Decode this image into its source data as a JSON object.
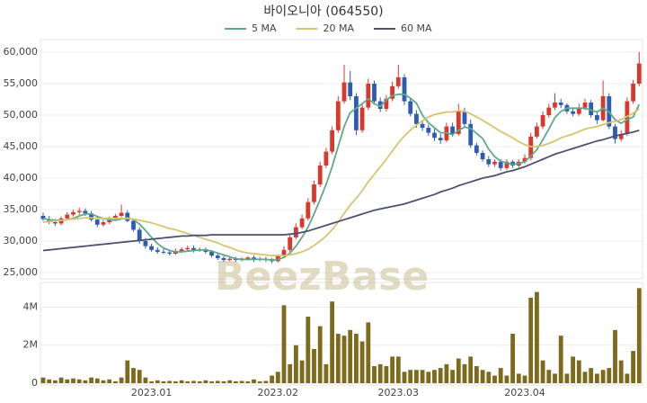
{
  "chart_data": [
    {
      "type": "candlestick",
      "title": "바이오니아 (064550)",
      "watermark": "BeezBase",
      "up_color": "#d9382c",
      "down_color": "#2c5db3",
      "grid": true,
      "ylim": [
        24000,
        62000
      ],
      "yticks": [
        {
          "value": 25000,
          "label": "25,000"
        },
        {
          "value": 30000,
          "label": "30,000"
        },
        {
          "value": 35000,
          "label": "35,000"
        },
        {
          "value": 40000,
          "label": "40,000"
        },
        {
          "value": 45000,
          "label": "45,000"
        },
        {
          "value": 50000,
          "label": "50,000"
        },
        {
          "value": 55000,
          "label": "55,000"
        },
        {
          "value": 60000,
          "label": "60,000"
        }
      ],
      "open": [
        34000,
        33500,
        33000,
        32800,
        33600,
        34200,
        34600,
        34800,
        34400,
        33400,
        32600,
        33000,
        33600,
        34000,
        34500,
        33200,
        31800,
        30000,
        29200,
        28600,
        28300,
        28200,
        28000,
        28400,
        28700,
        28900,
        28500,
        28700,
        28300,
        27700,
        27300,
        27000,
        27200,
        27000,
        27100,
        27400,
        27000,
        27200,
        27000,
        26800,
        27600,
        28600,
        30600,
        32200,
        33600,
        36200,
        39000,
        42000,
        44200,
        47600,
        52200,
        55200,
        53000,
        47600,
        51200,
        55000,
        52200,
        51000,
        52600,
        54600,
        56000,
        52200,
        50200,
        48600,
        48000,
        47200,
        46400,
        46000,
        48200,
        47000,
        50600,
        48600,
        45200,
        44000,
        43000,
        42200,
        42600,
        41600,
        42600,
        42000,
        42600,
        43200,
        46600,
        48200,
        50000,
        51200,
        52000,
        51600,
        50600,
        50200,
        51200,
        52000,
        50000,
        49200,
        53000,
        48200,
        46200,
        47000,
        52200,
        55000
      ],
      "high": [
        34500,
        34000,
        33500,
        33900,
        34600,
        35000,
        35300,
        35200,
        34800,
        33800,
        33400,
        33900,
        34300,
        35800,
        34900,
        33500,
        32200,
        30500,
        29600,
        29000,
        28800,
        28600,
        28800,
        29000,
        29300,
        29300,
        29000,
        29000,
        28600,
        28000,
        27600,
        27600,
        27500,
        27400,
        27600,
        27700,
        27500,
        27500,
        27300,
        27900,
        29200,
        31200,
        32800,
        34200,
        36800,
        39600,
        42600,
        44800,
        48200,
        53000,
        58000,
        57000,
        53500,
        51800,
        55800,
        55500,
        52800,
        53200,
        55300,
        58000,
        56500,
        52800,
        50800,
        49200,
        48500,
        47800,
        47000,
        48800,
        48800,
        51800,
        51200,
        49300,
        45600,
        44400,
        43500,
        43000,
        43000,
        43000,
        42900,
        43000,
        43800,
        47200,
        48800,
        50600,
        51800,
        53500,
        52600,
        51900,
        51000,
        51800,
        52600,
        52400,
        50400,
        55500,
        53500,
        48600,
        47600,
        52800,
        55600,
        60000
      ],
      "low": [
        33200,
        32700,
        32400,
        32500,
        33300,
        33900,
        34200,
        34000,
        33100,
        32200,
        32300,
        32700,
        33300,
        33800,
        33000,
        31500,
        29600,
        28800,
        28300,
        28000,
        27900,
        27700,
        27800,
        28100,
        28400,
        28200,
        28300,
        28000,
        27400,
        27000,
        26700,
        26800,
        26700,
        26800,
        26900,
        26700,
        26800,
        26700,
        26500,
        26600,
        27400,
        28300,
        30300,
        31900,
        33300,
        35800,
        38600,
        41600,
        43800,
        47200,
        51800,
        52400,
        46800,
        47200,
        50800,
        51800,
        50500,
        50600,
        52200,
        54200,
        51600,
        49800,
        48000,
        47500,
        46700,
        45900,
        45400,
        45700,
        46600,
        46700,
        48000,
        44800,
        43600,
        42600,
        41800,
        41800,
        41200,
        41300,
        41600,
        41700,
        42300,
        42800,
        46300,
        47800,
        49600,
        50800,
        51100,
        50200,
        49800,
        49900,
        50800,
        49600,
        48600,
        49000,
        47800,
        45500,
        45800,
        46700,
        51800,
        54600
      ],
      "close": [
        33500,
        33000,
        32800,
        33600,
        34200,
        34600,
        34800,
        34400,
        33400,
        32600,
        33000,
        33600,
        34000,
        34500,
        33200,
        31800,
        30000,
        29200,
        28600,
        28300,
        28200,
        28000,
        28400,
        28700,
        28900,
        28500,
        28700,
        28300,
        27700,
        27300,
        27000,
        27200,
        27000,
        27100,
        27400,
        27000,
        27200,
        27000,
        26800,
        27600,
        28600,
        30600,
        32200,
        33600,
        36200,
        39000,
        42000,
        44200,
        47600,
        52200,
        55200,
        53000,
        47600,
        51200,
        55000,
        52200,
        51000,
        52600,
        54600,
        56000,
        52200,
        50200,
        48600,
        48000,
        47200,
        46400,
        46000,
        48200,
        47000,
        50600,
        48600,
        45200,
        44000,
        43000,
        42200,
        42600,
        41600,
        42600,
        42000,
        42600,
        43200,
        46600,
        48200,
        50000,
        51200,
        52000,
        51600,
        50600,
        50200,
        51200,
        52000,
        50000,
        49200,
        53000,
        48200,
        46200,
        47000,
        52200,
        55000,
        58200
      ],
      "series": [
        {
          "name": "5 MA",
          "color": "#5ea98a",
          "values": [
            33600,
            33400,
            33300,
            33300,
            33400,
            33600,
            34000,
            34300,
            34300,
            33900,
            33600,
            33400,
            33300,
            33500,
            33700,
            33400,
            32700,
            31700,
            30600,
            29600,
            28900,
            28500,
            28300,
            28300,
            28400,
            28500,
            28600,
            28600,
            28400,
            28100,
            27800,
            27500,
            27200,
            27100,
            27100,
            27100,
            27100,
            27100,
            27000,
            27100,
            27400,
            28100,
            29200,
            30600,
            32200,
            34300,
            36600,
            39000,
            41800,
            45000,
            48200,
            50400,
            51100,
            51800,
            52600,
            51800,
            51400,
            52400,
            53100,
            53300,
            53300,
            52700,
            51900,
            50000,
            48800,
            48000,
            47200,
            47200,
            46900,
            47600,
            48100,
            47900,
            47100,
            46300,
            44600,
            43400,
            42700,
            42400,
            42200,
            42300,
            42600,
            43500,
            44500,
            46100,
            47800,
            49600,
            50600,
            51100,
            51100,
            51100,
            51100,
            50800,
            50500,
            51100,
            50500,
            49300,
            48700,
            49300,
            49700,
            51700
          ]
        },
        {
          "name": "20 MA",
          "color": "#d8c46c",
          "values": [
            33000,
            33100,
            33200,
            33300,
            33400,
            33500,
            33600,
            33700,
            33700,
            33600,
            33600,
            33600,
            33600,
            33600,
            33600,
            33500,
            33300,
            33100,
            32900,
            32600,
            32300,
            32000,
            31800,
            31500,
            31200,
            30900,
            30600,
            30300,
            30000,
            29700,
            29300,
            29000,
            28600,
            28300,
            28100,
            28000,
            27900,
            27800,
            27700,
            27700,
            27700,
            27800,
            28000,
            28300,
            28700,
            29300,
            30000,
            30800,
            31800,
            33000,
            34400,
            35700,
            36800,
            38000,
            39400,
            40600,
            41800,
            43000,
            44300,
            45600,
            46700,
            47600,
            48400,
            49100,
            49700,
            50100,
            50300,
            50500,
            50500,
            50700,
            50600,
            50200,
            49700,
            49200,
            48600,
            48000,
            47400,
            46900,
            46400,
            45800,
            45300,
            45000,
            45000,
            45200,
            45500,
            45900,
            46400,
            46700,
            47000,
            47400,
            47800,
            48000,
            48200,
            48500,
            48800,
            49000,
            49300,
            49800,
            50300,
            51000
          ]
        },
        {
          "name": "60 MA",
          "color": "#4b5172",
          "values": [
            28500,
            28600,
            28700,
            28800,
            28900,
            29000,
            29100,
            29200,
            29300,
            29400,
            29500,
            29600,
            29700,
            29800,
            29900,
            30000,
            30100,
            30200,
            30300,
            30400,
            30500,
            30600,
            30700,
            30800,
            30800,
            30900,
            30900,
            30900,
            31000,
            31000,
            31000,
            31000,
            31000,
            31000,
            31000,
            31000,
            31000,
            31000,
            31000,
            31000,
            31000,
            31100,
            31200,
            31400,
            31600,
            31900,
            32200,
            32500,
            32800,
            33100,
            33400,
            33700,
            34000,
            34300,
            34600,
            34900,
            35100,
            35300,
            35500,
            35700,
            35900,
            36200,
            36500,
            36800,
            37100,
            37400,
            37800,
            38100,
            38400,
            38800,
            39100,
            39400,
            39700,
            40000,
            40200,
            40400,
            40700,
            41000,
            41200,
            41500,
            41800,
            42200,
            42600,
            43000,
            43400,
            43800,
            44100,
            44400,
            44700,
            45000,
            45300,
            45600,
            45900,
            46100,
            46400,
            46700,
            46900,
            47100,
            47300,
            47600
          ]
        }
      ]
    },
    {
      "type": "bar",
      "color": "#7d6a1c",
      "grid": true,
      "ylim": [
        0,
        5300000
      ],
      "yticks": [
        0,
        {
          "value": 2000000,
          "label": "2M"
        },
        {
          "value": 4000000,
          "label": "4M"
        }
      ],
      "categories": [
        null,
        null,
        null,
        null,
        null,
        null,
        null,
        null,
        null,
        null,
        null,
        null,
        null,
        null,
        null,
        null,
        null,
        null,
        "2023.01",
        null,
        null,
        null,
        null,
        null,
        null,
        null,
        null,
        null,
        null,
        null,
        null,
        null,
        null,
        null,
        null,
        null,
        null,
        null,
        null,
        "2023.02",
        null,
        null,
        null,
        null,
        null,
        null,
        null,
        null,
        null,
        null,
        null,
        null,
        null,
        null,
        null,
        null,
        null,
        null,
        null,
        "2023.03",
        null,
        null,
        null,
        null,
        null,
        null,
        null,
        null,
        null,
        null,
        null,
        null,
        null,
        null,
        null,
        null,
        null,
        null,
        null,
        null,
        "2023.04",
        null,
        null,
        null,
        null,
        null,
        null,
        null,
        null,
        null,
        null,
        null,
        null,
        null,
        null,
        null,
        null,
        null,
        null,
        null
      ],
      "values": [
        300000,
        200000,
        150000,
        300000,
        200000,
        250000,
        200000,
        150000,
        300000,
        250000,
        150000,
        200000,
        100000,
        300000,
        1200000,
        800000,
        700000,
        300000,
        100000,
        150000,
        100000,
        120000,
        100000,
        150000,
        100000,
        120000,
        100000,
        150000,
        100000,
        120000,
        100000,
        150000,
        100000,
        120000,
        100000,
        200000,
        100000,
        120000,
        400000,
        600000,
        4100000,
        1000000,
        2000000,
        1200000,
        3500000,
        1800000,
        3000000,
        1000000,
        4300000,
        2600000,
        2500000,
        2800000,
        2600000,
        2200000,
        3200000,
        900000,
        1000000,
        900000,
        1400000,
        1400000,
        600000,
        700000,
        700000,
        700000,
        600000,
        700000,
        800000,
        1000000,
        700000,
        1300000,
        1000000,
        1400000,
        900000,
        700000,
        600000,
        400000,
        800000,
        400000,
        2600000,
        500000,
        400000,
        4500000,
        4800000,
        1200000,
        700000,
        500000,
        2500000,
        500000,
        1400000,
        1200000,
        600000,
        800000,
        500000,
        700000,
        800000,
        2800000,
        1200000,
        500000,
        1700000,
        5000000
      ]
    }
  ]
}
